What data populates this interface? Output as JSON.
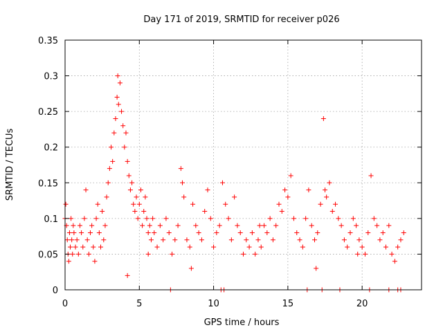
{
  "chart_data": {
    "type": "scatter",
    "title": "Day 171 of 2019, SRMTID for receiver p026",
    "xlabel": "GPS time / hours",
    "ylabel": "SRMTID / TECUs",
    "xlim": [
      0,
      24
    ],
    "ylim": [
      0,
      0.35
    ],
    "xticks": [
      0,
      5,
      10,
      15,
      20
    ],
    "xtick_labels": [
      "0",
      "5",
      "10",
      "15",
      "20"
    ],
    "yticks": [
      0,
      0.05,
      0.1,
      0.15,
      0.2,
      0.25,
      0.3,
      0.35
    ],
    "ytick_labels": [
      "0",
      "0.05",
      "0.1",
      "0.15",
      "0.2",
      "0.25",
      "0.3",
      "0.35"
    ],
    "grid": true,
    "marker": "plus",
    "color": "#ff0000",
    "series": [
      {
        "name": "SRMTID",
        "points": [
          [
            0.0,
            0.1
          ],
          [
            0.05,
            0.12
          ],
          [
            0.1,
            0.09
          ],
          [
            0.15,
            0.07
          ],
          [
            0.2,
            0.05
          ],
          [
            0.25,
            0.04
          ],
          [
            0.3,
            0.08
          ],
          [
            0.35,
            0.06
          ],
          [
            0.4,
            0.1
          ],
          [
            0.45,
            0.07
          ],
          [
            0.5,
            0.05
          ],
          [
            0.55,
            0.09
          ],
          [
            0.6,
            0.08
          ],
          [
            0.7,
            0.06
          ],
          [
            0.8,
            0.07
          ],
          [
            0.9,
            0.05
          ],
          [
            1.0,
            0.09
          ],
          [
            1.1,
            0.08
          ],
          [
            1.2,
            0.06
          ],
          [
            1.3,
            0.1
          ],
          [
            1.4,
            0.14
          ],
          [
            1.5,
            0.07
          ],
          [
            1.6,
            0.05
          ],
          [
            1.7,
            0.08
          ],
          [
            1.8,
            0.09
          ],
          [
            1.9,
            0.06
          ],
          [
            2.0,
            0.04
          ],
          [
            2.1,
            0.1
          ],
          [
            2.2,
            0.12
          ],
          [
            2.3,
            0.08
          ],
          [
            2.4,
            0.06
          ],
          [
            2.5,
            0.11
          ],
          [
            2.6,
            0.07
          ],
          [
            2.7,
            0.09
          ],
          [
            2.8,
            0.13
          ],
          [
            2.9,
            0.15
          ],
          [
            3.0,
            0.17
          ],
          [
            3.1,
            0.2
          ],
          [
            3.2,
            0.18
          ],
          [
            3.3,
            0.22
          ],
          [
            3.4,
            0.24
          ],
          [
            3.5,
            0.27
          ],
          [
            3.55,
            0.3
          ],
          [
            3.6,
            0.26
          ],
          [
            3.7,
            0.29
          ],
          [
            3.8,
            0.25
          ],
          [
            3.9,
            0.23
          ],
          [
            4.0,
            0.2
          ],
          [
            4.1,
            0.22
          ],
          [
            4.2,
            0.18
          ],
          [
            4.3,
            0.16
          ],
          [
            4.4,
            0.14
          ],
          [
            4.5,
            0.15
          ],
          [
            4.6,
            0.12
          ],
          [
            4.7,
            0.11
          ],
          [
            4.8,
            0.13
          ],
          [
            4.9,
            0.1
          ],
          [
            5.0,
            0.12
          ],
          [
            5.1,
            0.14
          ],
          [
            5.2,
            0.09
          ],
          [
            5.3,
            0.11
          ],
          [
            5.4,
            0.13
          ],
          [
            5.5,
            0.1
          ],
          [
            5.6,
            0.08
          ],
          [
            5.7,
            0.09
          ],
          [
            5.8,
            0.07
          ],
          [
            5.9,
            0.1
          ],
          [
            6.0,
            0.08
          ],
          [
            6.2,
            0.06
          ],
          [
            6.4,
            0.09
          ],
          [
            6.6,
            0.07
          ],
          [
            6.8,
            0.1
          ],
          [
            7.0,
            0.08
          ],
          [
            7.2,
            0.05
          ],
          [
            7.4,
            0.07
          ],
          [
            7.6,
            0.09
          ],
          [
            7.8,
            0.17
          ],
          [
            7.9,
            0.15
          ],
          [
            8.0,
            0.13
          ],
          [
            8.2,
            0.07
          ],
          [
            8.4,
            0.06
          ],
          [
            8.6,
            0.12
          ],
          [
            8.8,
            0.09
          ],
          [
            9.0,
            0.08
          ],
          [
            9.2,
            0.07
          ],
          [
            9.4,
            0.11
          ],
          [
            9.6,
            0.14
          ],
          [
            9.8,
            0.1
          ],
          [
            10.0,
            0.06
          ],
          [
            10.2,
            0.08
          ],
          [
            10.4,
            0.09
          ],
          [
            10.6,
            0.15
          ],
          [
            10.8,
            0.12
          ],
          [
            11.0,
            0.1
          ],
          [
            11.2,
            0.07
          ],
          [
            11.4,
            0.13
          ],
          [
            11.6,
            0.09
          ],
          [
            11.8,
            0.08
          ],
          [
            12.0,
            0.05
          ],
          [
            12.2,
            0.07
          ],
          [
            12.4,
            0.06
          ],
          [
            12.6,
            0.08
          ],
          [
            12.8,
            0.05
          ],
          [
            13.0,
            0.07
          ],
          [
            13.2,
            0.06
          ],
          [
            13.4,
            0.09
          ],
          [
            13.6,
            0.08
          ],
          [
            13.8,
            0.1
          ],
          [
            14.0,
            0.07
          ],
          [
            14.2,
            0.09
          ],
          [
            14.4,
            0.12
          ],
          [
            14.6,
            0.11
          ],
          [
            14.8,
            0.14
          ],
          [
            15.0,
            0.13
          ],
          [
            15.2,
            0.16
          ],
          [
            15.4,
            0.1
          ],
          [
            15.6,
            0.08
          ],
          [
            15.8,
            0.07
          ],
          [
            16.0,
            0.06
          ],
          [
            16.2,
            0.1
          ],
          [
            16.4,
            0.14
          ],
          [
            16.6,
            0.09
          ],
          [
            16.8,
            0.07
          ],
          [
            17.0,
            0.08
          ],
          [
            17.2,
            0.12
          ],
          [
            17.4,
            0.24
          ],
          [
            17.5,
            0.14
          ],
          [
            17.6,
            0.13
          ],
          [
            17.8,
            0.15
          ],
          [
            18.0,
            0.11
          ],
          [
            18.2,
            0.12
          ],
          [
            18.4,
            0.1
          ],
          [
            18.6,
            0.09
          ],
          [
            18.8,
            0.07
          ],
          [
            19.0,
            0.06
          ],
          [
            19.2,
            0.08
          ],
          [
            19.4,
            0.1
          ],
          [
            19.6,
            0.09
          ],
          [
            19.8,
            0.07
          ],
          [
            20.0,
            0.06
          ],
          [
            20.2,
            0.05
          ],
          [
            20.4,
            0.08
          ],
          [
            20.6,
            0.16
          ],
          [
            20.8,
            0.1
          ],
          [
            21.0,
            0.09
          ],
          [
            21.2,
            0.07
          ],
          [
            21.4,
            0.08
          ],
          [
            21.6,
            0.06
          ],
          [
            21.8,
            0.09
          ],
          [
            22.0,
            0.05
          ],
          [
            22.2,
            0.04
          ],
          [
            22.4,
            0.06
          ],
          [
            22.6,
            0.07
          ],
          [
            22.8,
            0.08
          ],
          [
            4.2,
            0.02
          ],
          [
            5.6,
            0.05
          ],
          [
            8.5,
            0.03
          ],
          [
            13.1,
            0.09
          ],
          [
            16.9,
            0.03
          ],
          [
            19.7,
            0.05
          ],
          [
            7.1,
            0.0
          ],
          [
            10.5,
            0.0
          ],
          [
            10.7,
            0.0
          ],
          [
            16.3,
            0.0
          ],
          [
            17.3,
            0.0
          ],
          [
            18.5,
            0.0
          ],
          [
            20.5,
            0.0
          ],
          [
            21.8,
            0.0
          ],
          [
            22.4,
            0.0
          ],
          [
            22.6,
            0.0
          ]
        ]
      }
    ]
  }
}
